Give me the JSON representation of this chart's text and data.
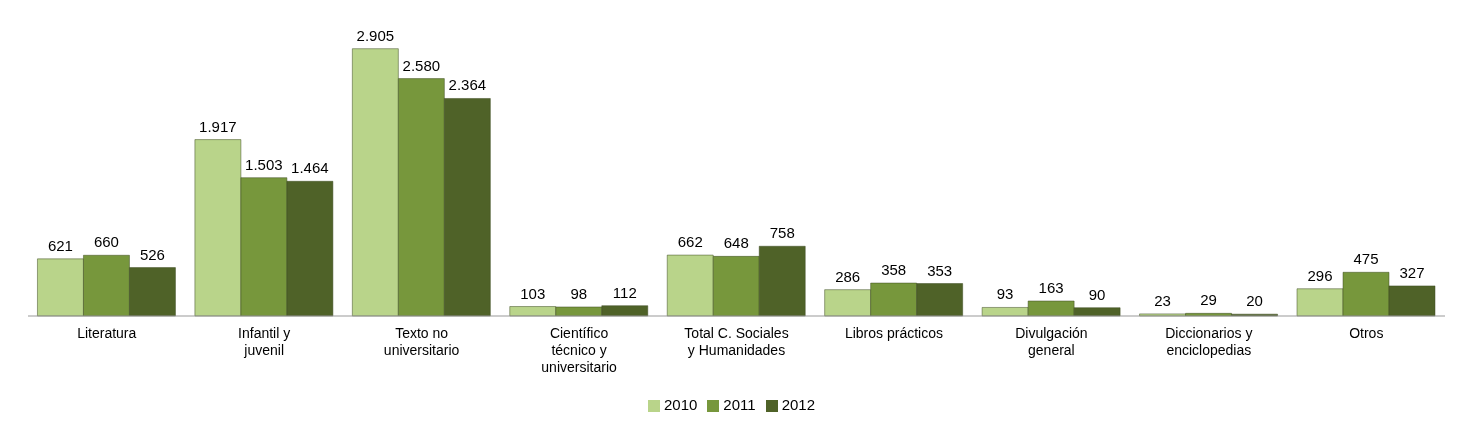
{
  "chart_data": {
    "type": "bar",
    "categories": [
      "Literatura",
      "Infantil y juvenil",
      "Texto no universitario",
      "Científico técnico y universitario",
      "Total C. Sociales y Humanidades",
      "Libros prácticos",
      "Divulgación general",
      "Diccionarios y enciclopedias",
      "Otros"
    ],
    "series": [
      {
        "name": "2010",
        "color": "#b9d48a",
        "values": [
          621,
          1917,
          2905,
          103,
          662,
          286,
          93,
          23,
          296
        ],
        "value_labels": [
          "621",
          "1.917",
          "2.905",
          "103",
          "662",
          "286",
          "93",
          "23",
          "296"
        ]
      },
      {
        "name": "2011",
        "color": "#77973c",
        "values": [
          660,
          1503,
          2580,
          98,
          648,
          358,
          163,
          29,
          475
        ],
        "value_labels": [
          "660",
          "1.503",
          "2.580",
          "98",
          "648",
          "358",
          "163",
          "29",
          "475"
        ]
      },
      {
        "name": "2012",
        "color": "#4f6228",
        "values": [
          526,
          1464,
          2364,
          112,
          758,
          353,
          90,
          20,
          327
        ],
        "value_labels": [
          "526",
          "1.464",
          "2.364",
          "112",
          "758",
          "353",
          "90",
          "20",
          "327"
        ]
      }
    ],
    "legend": "bottom"
  }
}
